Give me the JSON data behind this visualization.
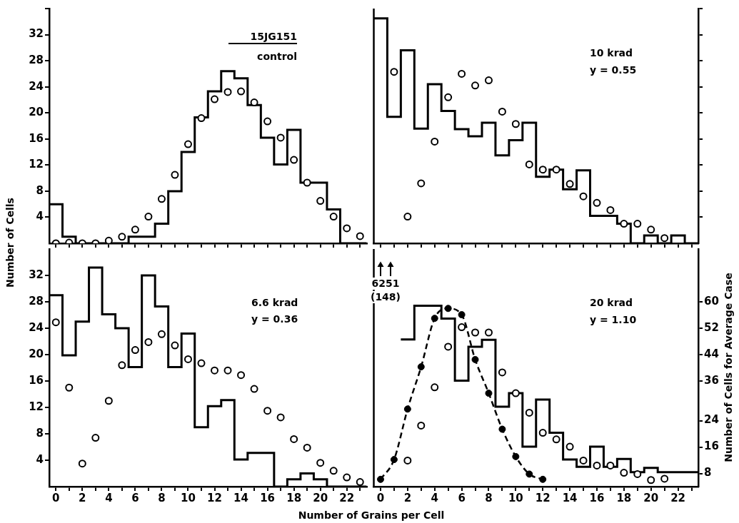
{
  "chart_data": [
    {
      "type": "histogram",
      "bins": [
        -0.5,
        0.5,
        1.5,
        2.5,
        3.5,
        4.5,
        5.5,
        6.5,
        7.5,
        8.5,
        9.5,
        10.5,
        11.5,
        12.5,
        13.5,
        14.5,
        15.5,
        16.5,
        17.5,
        18.5,
        19.5,
        20.5,
        21.5,
        22.5,
        23.5
      ],
      "xlim": [
        -0.5,
        23.5
      ],
      "xticks": [
        0,
        {
          "value": 1,
          "label": null
        },
        2,
        {
          "value": 3,
          "label": null
        },
        4,
        {
          "value": 5,
          "label": null
        },
        6,
        {
          "value": 7,
          "label": null
        },
        8,
        {
          "value": 9,
          "label": null
        },
        10,
        {
          "value": 11,
          "label": null
        },
        12,
        {
          "value": 13,
          "label": null
        },
        14,
        {
          "value": 15,
          "label": null
        },
        16,
        {
          "value": 17,
          "label": null
        },
        18,
        {
          "value": 19,
          "label": null
        },
        20,
        {
          "value": 21,
          "label": null
        },
        22,
        {
          "value": 23,
          "label": null
        }
      ],
      "ylim": [
        0,
        36
      ],
      "yticks": [
        4,
        8,
        12,
        16,
        20,
        24,
        28,
        32,
        {
          "value": 36,
          "label": null
        }
      ],
      "tick_labels": "y",
      "ylabel": "Number of Cells",
      "annotations": [
        "15JG151",
        "control"
      ],
      "series": [
        {
          "color": "#000000",
          "values": [
            6,
            1,
            0,
            0,
            0,
            0,
            1,
            1,
            3,
            8,
            14,
            19.3,
            23.3,
            26.4,
            25.3,
            21.2,
            16.2,
            12.1,
            17.4,
            9.3,
            9.3,
            5.2,
            0,
            0
          ]
        },
        {
          "type": "scatter",
          "color": "#000000",
          "marker": "circle",
          "x": [
            0,
            1,
            2,
            3,
            4,
            5,
            6,
            7,
            8,
            9,
            10,
            11,
            12,
            13,
            14,
            15,
            16,
            17,
            18,
            19,
            20,
            21,
            22,
            23
          ],
          "values": [
            0,
            0.1,
            0,
            0,
            0.4,
            1,
            2.1,
            4.1,
            6.8,
            10.5,
            15.2,
            19.2,
            22.1,
            23.2,
            23.3,
            21.6,
            18.7,
            16.2,
            12.8,
            9.3,
            6.5,
            4.1,
            2.3,
            1.1
          ]
        }
      ]
    },
    {
      "type": "histogram",
      "bins": [
        -0.5,
        0.5,
        1.5,
        2.5,
        3.5,
        4.5,
        5.5,
        6.5,
        7.5,
        8.5,
        9.5,
        10.5,
        11.5,
        12.5,
        13.5,
        14.5,
        15.5,
        16.5,
        17.5,
        18.5,
        19.5,
        20.5,
        21.5,
        22.5,
        23.5
      ],
      "xlim": [
        -0.5,
        23.5
      ],
      "xticks": [
        0,
        {
          "value": 1,
          "label": null
        },
        2,
        {
          "value": 3,
          "label": null
        },
        4,
        {
          "value": 5,
          "label": null
        },
        6,
        {
          "value": 7,
          "label": null
        },
        8,
        {
          "value": 9,
          "label": null
        },
        10,
        {
          "value": 11,
          "label": null
        },
        12,
        {
          "value": 13,
          "label": null
        },
        14,
        {
          "value": 15,
          "label": null
        },
        16,
        {
          "value": 17,
          "label": null
        },
        18,
        {
          "value": 19,
          "label": null
        },
        20,
        {
          "value": 21,
          "label": null
        },
        22,
        {
          "value": 23,
          "label": null
        }
      ],
      "ylim": [
        0,
        36
      ],
      "yticks": [
        4,
        8,
        12,
        16,
        20,
        24,
        28,
        32,
        {
          "value": 36,
          "label": null
        }
      ],
      "tick_labels": false,
      "annotations": [
        "10 krad",
        "y = 0.55"
      ],
      "series": [
        {
          "color": "#000000",
          "values": [
            34.5,
            19.4,
            29.6,
            17.6,
            24.4,
            20.3,
            17.5,
            16.4,
            18.5,
            13.5,
            15.8,
            18.5,
            10.2,
            11.3,
            8.3,
            11.2,
            4.2,
            4.2,
            3,
            0,
            1.2,
            0,
            1.2,
            0
          ]
        },
        {
          "type": "scatter",
          "color": "#000000",
          "marker": "circle",
          "x": [
            1,
            2,
            3,
            4,
            5,
            6,
            7,
            8,
            9,
            10,
            11,
            12,
            13,
            14,
            15,
            16,
            17,
            18,
            19,
            20,
            21
          ],
          "values": [
            26.3,
            4.1,
            9.2,
            15.6,
            22.4,
            26,
            24.2,
            25,
            20.2,
            18.3,
            12.1,
            11.3,
            11.3,
            9.1,
            7.2,
            6.2,
            5.1,
            3,
            3,
            2.1,
            0.8
          ]
        }
      ]
    },
    {
      "type": "histogram",
      "bins": [
        -0.5,
        0.5,
        1.5,
        2.5,
        3.5,
        4.5,
        5.5,
        6.5,
        7.5,
        8.5,
        9.5,
        10.5,
        11.5,
        12.5,
        13.5,
        14.5,
        15.5,
        16.5,
        17.5,
        18.5,
        19.5,
        20.5,
        21.5,
        22.5,
        23.5
      ],
      "xlim": [
        -0.5,
        23.5
      ],
      "xticks": [
        0,
        {
          "value": 1,
          "label": null
        },
        2,
        {
          "value": 3,
          "label": null
        },
        4,
        {
          "value": 5,
          "label": null
        },
        6,
        {
          "value": 7,
          "label": null
        },
        8,
        {
          "value": 9,
          "label": null
        },
        10,
        {
          "value": 11,
          "label": null
        },
        12,
        {
          "value": 13,
          "label": null
        },
        14,
        {
          "value": 15,
          "label": null
        },
        16,
        {
          "value": 17,
          "label": null
        },
        18,
        {
          "value": 19,
          "label": null
        },
        20,
        {
          "value": 21,
          "label": null
        },
        22,
        {
          "value": 23,
          "label": null
        }
      ],
      "ylim": [
        0,
        36
      ],
      "yticks": [
        4,
        8,
        12,
        16,
        20,
        24,
        28,
        32
      ],
      "xlabel": "Number of Grains per Cell",
      "annotations": [
        "6.6 krad",
        "y = 0.36"
      ],
      "series": [
        {
          "color": "#000000",
          "values": [
            29,
            19.9,
            25,
            33.2,
            26.1,
            24,
            18.1,
            32,
            27.3,
            18.1,
            23.2,
            9,
            12.2,
            13.1,
            4.1,
            5.1,
            5.1,
            0,
            1.1,
            2,
            1.1,
            0,
            0,
            0
          ]
        },
        {
          "type": "scatter",
          "color": "#000000",
          "marker": "circle",
          "x": [
            0,
            1,
            2,
            3,
            4,
            5,
            6,
            7,
            8,
            9,
            10,
            11,
            12,
            13,
            14,
            15,
            16,
            17,
            18,
            19,
            20,
            21,
            22,
            23
          ],
          "values": [
            24.9,
            15,
            3.5,
            7.4,
            13,
            18.4,
            20.7,
            21.9,
            23.1,
            21.4,
            19.3,
            18.7,
            17.6,
            17.6,
            16.9,
            14.8,
            11.5,
            10.5,
            7.2,
            5.9,
            3.6,
            2.4,
            1.4,
            0.7
          ]
        }
      ]
    },
    {
      "type": "histogram",
      "xlim": [
        -0.5,
        23.5
      ],
      "xticks": [
        0,
        {
          "value": 1,
          "label": null
        },
        2,
        {
          "value": 3,
          "label": null
        },
        4,
        {
          "value": 5,
          "label": null
        },
        6,
        {
          "value": 7,
          "label": null
        },
        8,
        {
          "value": 9,
          "label": null
        },
        10,
        {
          "value": 11,
          "label": null
        },
        12,
        {
          "value": 13,
          "label": null
        },
        14,
        {
          "value": 15,
          "label": null
        },
        16,
        {
          "value": 17,
          "label": null
        },
        18,
        {
          "value": 19,
          "label": null
        },
        20,
        {
          "value": 21,
          "label": null
        },
        22,
        {
          "value": 23,
          "label": null
        }
      ],
      "y2lim": [
        4,
        76
      ],
      "y2ticks": [
        8,
        16,
        24,
        36,
        44,
        52,
        60
      ],
      "y2label": "Number of Cells for Average Case",
      "annotations": [
        "20 krad",
        "y = 1.10",
        "6251",
        "(148)"
      ],
      "series": [
        {
          "axis": "y2",
          "color": "#000000",
          "bins": [
            1.5,
            2.5,
            3.5,
            4.5,
            5.5,
            6.5,
            7.5,
            8.5,
            9.5,
            10.5,
            11.5,
            12.5,
            13.5,
            14.5,
            15.5,
            16.5,
            17.5,
            18.5,
            19.5,
            20.5,
            21.5,
            22.5,
            23.5
          ],
          "values": [
            48.6,
            58.8,
            58.8,
            54.9,
            36.1,
            46.4,
            48.5,
            28.2,
            32.3,
            16.1,
            30.4,
            20.3,
            12.2,
            10,
            16.1,
            10,
            12.4,
            8.4,
            9.7,
            8.4,
            8.4,
            8.4
          ]
        },
        {
          "type": "scatter",
          "axis": "y2",
          "color": "#000000",
          "marker": "circle",
          "x": [
            2,
            3,
            4,
            5,
            6,
            7,
            8,
            9,
            10,
            11,
            12,
            13,
            14,
            15,
            16,
            17,
            18,
            19,
            20,
            21
          ],
          "values": [
            11.9,
            22.5,
            34.1,
            46.4,
            52.3,
            50.7,
            50.7,
            38.6,
            32.3,
            26.4,
            20.3,
            18.3,
            16.1,
            11.9,
            10.4,
            10.4,
            8.2,
            7.8,
            6,
            6.4
          ]
        },
        {
          "type": "line",
          "axis": "y2",
          "color": "#000000",
          "marker": "circle",
          "line_style": "dashed",
          "x": [
            0,
            1,
            2,
            3,
            4,
            5,
            6,
            7,
            8,
            9,
            10,
            11,
            12
          ],
          "values": [
            6.2,
            12.2,
            27.5,
            40.3,
            55,
            58,
            56.1,
            42.5,
            32.3,
            21.4,
            13.1,
            7.8,
            6.2
          ]
        }
      ]
    }
  ]
}
